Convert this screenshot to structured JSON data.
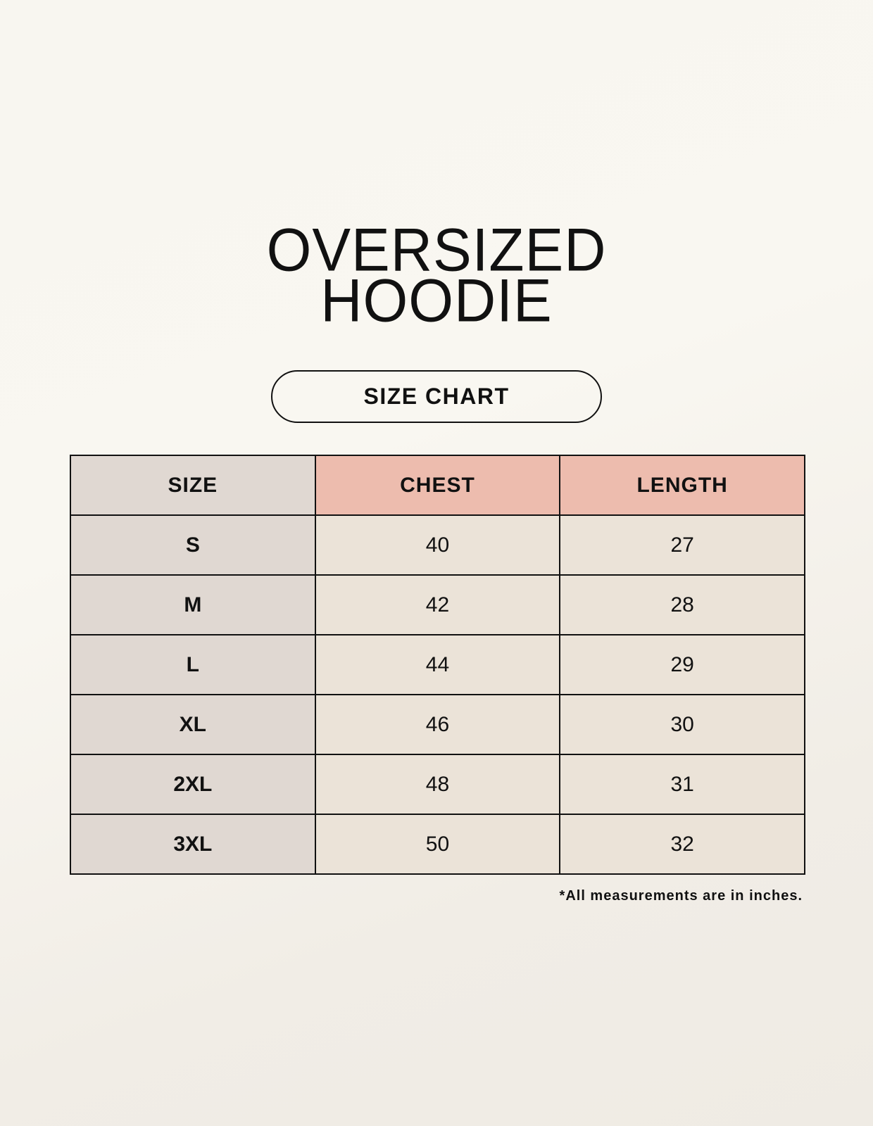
{
  "title": {
    "line1": "OVERSIZED",
    "line2": "HOODIE"
  },
  "subtitle": "SIZE CHART",
  "table": {
    "headers": [
      "SIZE",
      "CHEST",
      "LENGTH"
    ],
    "rows": [
      [
        "S",
        "40",
        "27"
      ],
      [
        "M",
        "42",
        "28"
      ],
      [
        "L",
        "44",
        "29"
      ],
      [
        "XL",
        "46",
        "30"
      ],
      [
        "2XL",
        "48",
        "31"
      ],
      [
        "3XL",
        "50",
        "32"
      ]
    ]
  },
  "footnote": "*All measurements are in inches.",
  "colors": {
    "size_column": "#e0d8d2",
    "header_accent": "#edbcae",
    "cell": "#ebe3d8"
  }
}
